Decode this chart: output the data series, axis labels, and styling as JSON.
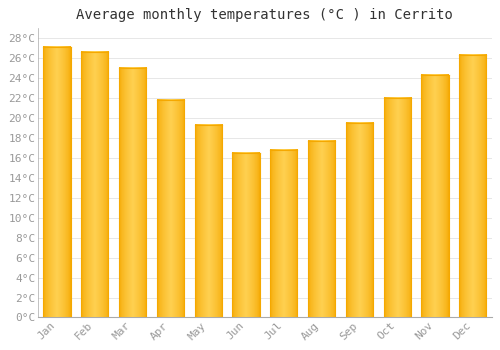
{
  "title": "Average monthly temperatures (°C ) in Cerrito",
  "months": [
    "Jan",
    "Feb",
    "Mar",
    "Apr",
    "May",
    "Jun",
    "Jul",
    "Aug",
    "Sep",
    "Oct",
    "Nov",
    "Dec"
  ],
  "values": [
    27.1,
    26.6,
    25.0,
    21.8,
    19.3,
    16.5,
    16.8,
    17.7,
    19.5,
    22.0,
    24.3,
    26.3
  ],
  "bar_color_dark": "#F5A800",
  "bar_color_light": "#FFD050",
  "background_color": "#FFFFFF",
  "grid_color": "#DDDDDD",
  "ylim": [
    0,
    29
  ],
  "ytick_step": 2,
  "title_fontsize": 10,
  "tick_fontsize": 8,
  "tick_color": "#999999",
  "title_color": "#333333",
  "bar_width": 0.72
}
